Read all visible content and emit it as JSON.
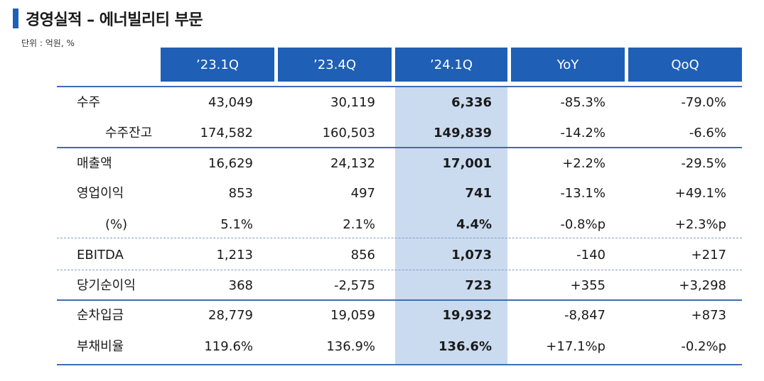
{
  "header": {
    "title": "경영실적 – 에너빌리티 부문",
    "unit": "단위 : 억원, %"
  },
  "columns": [
    "’23.1Q",
    "’23.4Q",
    "’24.1Q",
    "YoY",
    "QoQ"
  ],
  "rows": [
    {
      "label": "수주",
      "indent": false,
      "values": [
        "43,049",
        "30,119",
        "6,336",
        "-85.3%",
        "-79.0%"
      ]
    },
    {
      "label": "수주잔고",
      "indent": true,
      "values": [
        "174,582",
        "160,503",
        "149,839",
        "-14.2%",
        "-6.6%"
      ]
    },
    {
      "label": "매출액",
      "indent": false,
      "values": [
        "16,629",
        "24,132",
        "17,001",
        "+2.2%",
        "-29.5%"
      ]
    },
    {
      "label": "영업이익",
      "indent": false,
      "values": [
        "853",
        "497",
        "741",
        "-13.1%",
        "+49.1%"
      ]
    },
    {
      "label": "(%)",
      "indent": true,
      "values": [
        "5.1%",
        "2.1%",
        "4.4%",
        "-0.8%p",
        "+2.3%p"
      ]
    },
    {
      "label": "EBITDA",
      "indent": false,
      "values": [
        "1,213",
        "856",
        "1,073",
        "-140",
        "+217"
      ]
    },
    {
      "label": "당기순이익",
      "indent": false,
      "values": [
        "368",
        "-2,575",
        "723",
        "+355",
        "+3,298"
      ]
    },
    {
      "label": "순차입금",
      "indent": false,
      "values": [
        "28,779",
        "19,059",
        "19,932",
        "-8,847",
        "+873"
      ]
    },
    {
      "label": "부채비율",
      "indent": false,
      "values": [
        "119.6%",
        "136.9%",
        "136.6%",
        "+17.1%p",
        "-0.2%p"
      ]
    }
  ],
  "colors": {
    "accent": "#1f5fb5",
    "highlight": "#cadbf0"
  }
}
